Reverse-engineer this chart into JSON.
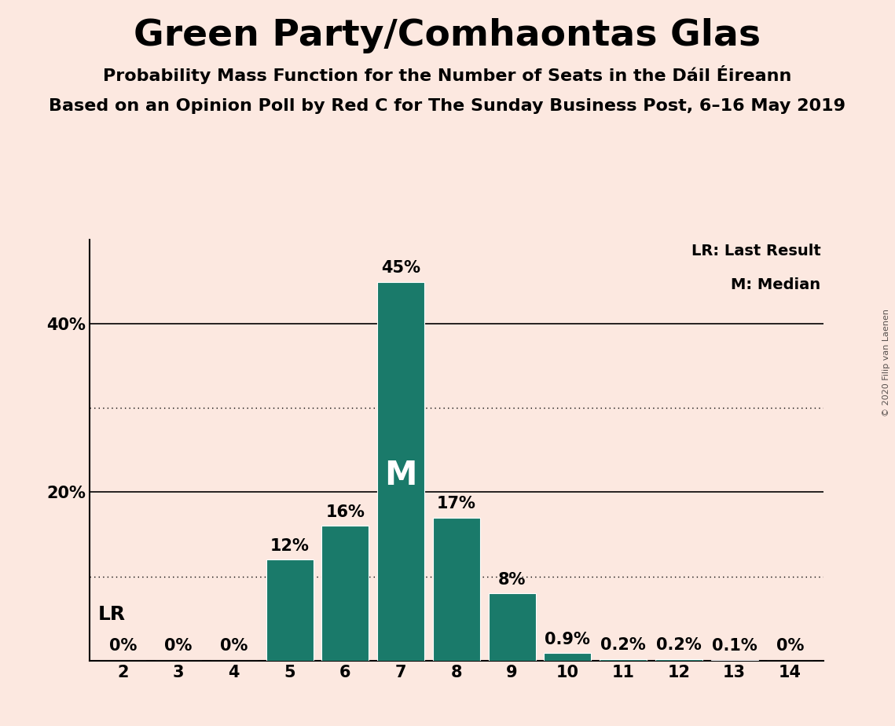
{
  "title": "Green Party/Comhaontas Glas",
  "subtitle1": "Probability Mass Function for the Number of Seats in the Dáil Éireann",
  "subtitle2": "Based on an Opinion Poll by Red C for The Sunday Business Post, 6–16 May 2019",
  "copyright": "© 2020 Filip van Laenen",
  "categories": [
    2,
    3,
    4,
    5,
    6,
    7,
    8,
    9,
    10,
    11,
    12,
    13,
    14
  ],
  "values": [
    0,
    0,
    0,
    12,
    16,
    45,
    17,
    8,
    0.9,
    0.2,
    0.2,
    0.1,
    0
  ],
  "bar_color": "#1a7a6a",
  "background_color": "#fce8e0",
  "solid_gridlines": [
    20,
    40
  ],
  "dotted_gridlines": [
    10,
    30
  ],
  "ytick_positions": [
    20,
    40
  ],
  "ytick_labels": [
    "20%",
    "40%"
  ],
  "label_fontsize": 15,
  "title_fontsize": 34,
  "subtitle_fontsize": 16,
  "bar_label_fontsize": 15,
  "median_seat": 7,
  "lr_seat": 2,
  "legend_text_lr": "LR: Last Result",
  "legend_text_m": "M: Median",
  "lr_label": "LR",
  "m_label": "M",
  "value_labels": {
    "2": "0%",
    "3": "0%",
    "4": "0%",
    "5": "12%",
    "6": "16%",
    "7": "45%",
    "8": "17%",
    "9": "8%",
    "10": "0.9%",
    "11": "0.2%",
    "12": "0.2%",
    "13": "0.1%",
    "14": "0%"
  },
  "ylim": [
    0,
    50
  ],
  "xlim": [
    1.4,
    14.6
  ]
}
